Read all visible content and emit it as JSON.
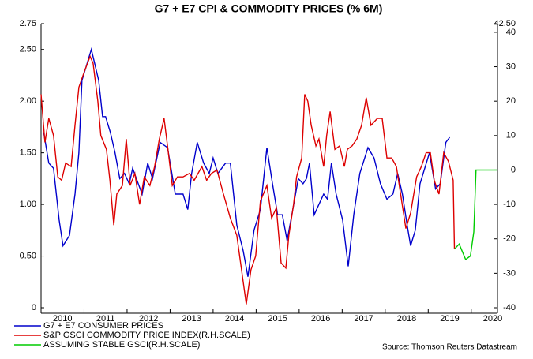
{
  "chart_data": {
    "type": "line",
    "title": "G7 + E7 CPI & COMMODITY PRICES (% 6M)",
    "source": "Source: Thomson Reuters Datastream",
    "xlim": [
      2010,
      2020.61
    ],
    "xticks": [
      2010,
      2011,
      2012,
      2013,
      2014,
      2015,
      2016,
      2017,
      2018,
      2019,
      2020
    ],
    "ylim": [
      0,
      2.75
    ],
    "yticks": [
      0,
      {
        "value": 0.5,
        "label": "0.50"
      },
      {
        "value": 1,
        "label": "1.00"
      },
      {
        "value": 1.5,
        "label": "1.50"
      },
      {
        "value": 2,
        "label": "2.00"
      },
      {
        "value": 2.5,
        "label": "2.50"
      },
      2.75
    ],
    "y2lim": [
      -40,
      42.5
    ],
    "y2ticks": [
      -40,
      -30,
      -20,
      -10,
      0,
      10,
      20,
      30,
      40,
      {
        "value": 42.5,
        "label": "42.50"
      }
    ],
    "grid": false,
    "series": [
      {
        "name": "G7 + E7 CONSUMER PRICES",
        "color": "#0000cc",
        "x": [
          2010.06,
          2010.18,
          2010.29,
          2010.42,
          2010.51,
          2010.66,
          2010.79,
          2010.88,
          2010.95,
          2011.06,
          2011.17,
          2011.34,
          2011.43,
          2011.5,
          2011.61,
          2011.72,
          2011.83,
          2011.94,
          2012.05,
          2012.13,
          2012.26,
          2012.35,
          2012.48,
          2012.59,
          2012.77,
          2012.94,
          2013.12,
          2013.3,
          2013.41,
          2013.5,
          2013.63,
          2013.78,
          2013.91,
          2014.0,
          2014.11,
          2014.29,
          2014.4,
          2014.55,
          2014.7,
          2014.81,
          2014.95,
          2015.1,
          2015.25,
          2015.38,
          2015.5,
          2015.61,
          2015.72,
          2015.83,
          2015.98,
          2016.09,
          2016.17,
          2016.24,
          2016.35,
          2016.46,
          2016.57,
          2016.66,
          2016.75,
          2016.86,
          2017.01,
          2017.14,
          2017.27,
          2017.41,
          2017.6,
          2017.74,
          2017.89,
          2018.04,
          2018.18,
          2018.29,
          2018.4,
          2018.51,
          2018.59,
          2018.7,
          2018.81,
          2019.03,
          2019.17,
          2019.28,
          2019.41,
          2019.5
        ],
        "values": [
          1.7,
          1.4,
          1.35,
          0.85,
          0.6,
          0.7,
          1.1,
          1.5,
          2.2,
          2.35,
          2.5,
          2.2,
          1.85,
          1.85,
          1.7,
          1.5,
          1.25,
          1.3,
          1.2,
          1.35,
          1.2,
          1.1,
          1.4,
          1.25,
          1.6,
          1.55,
          1.1,
          1.1,
          0.95,
          1.3,
          1.6,
          1.4,
          1.3,
          1.45,
          1.3,
          1.4,
          1.4,
          0.8,
          0.55,
          0.3,
          0.75,
          0.95,
          1.55,
          1.2,
          0.9,
          0.9,
          0.65,
          0.9,
          1.25,
          1.2,
          1.25,
          1.4,
          0.9,
          1.0,
          1.1,
          1.05,
          1.4,
          1.1,
          0.85,
          0.4,
          0.9,
          1.3,
          1.55,
          1.45,
          1.2,
          1.05,
          1.1,
          1.3,
          1.1,
          0.8,
          0.6,
          0.75,
          1.2,
          1.5,
          1.15,
          1.2,
          1.6,
          1.65
        ]
      },
      {
        "name": "S&P GSCI COMMODITY PRICE INDEX(R.H.SCALE)",
        "color": "#dd0000",
        "axis": "y2",
        "x": [
          2010.0,
          2010.09,
          2010.18,
          2010.29,
          2010.39,
          2010.48,
          2010.57,
          2010.7,
          2010.79,
          2010.88,
          2010.99,
          2011.14,
          2011.21,
          2011.32,
          2011.39,
          2011.52,
          2011.6,
          2011.69,
          2011.76,
          2011.89,
          2011.98,
          2012.07,
          2012.18,
          2012.29,
          2012.4,
          2012.53,
          2012.64,
          2012.75,
          2012.86,
          2012.95,
          2013.05,
          2013.17,
          2013.3,
          2013.45,
          2013.56,
          2013.74,
          2013.85,
          2013.96,
          2014.09,
          2014.24,
          2014.4,
          2014.55,
          2014.66,
          2014.77,
          2014.88,
          2014.99,
          2015.1,
          2015.25,
          2015.36,
          2015.47,
          2015.58,
          2015.69,
          2015.76,
          2015.87,
          2015.94,
          2016.06,
          2016.13,
          2016.2,
          2016.28,
          2016.39,
          2016.46,
          2016.57,
          2016.64,
          2016.72,
          2016.83,
          2016.94,
          2017.05,
          2017.12,
          2017.23,
          2017.34,
          2017.45,
          2017.56,
          2017.67,
          2017.82,
          2017.93,
          2018.04,
          2018.15,
          2018.26,
          2018.37,
          2018.48,
          2018.59,
          2018.73,
          2018.84,
          2018.95,
          2019.05,
          2019.14,
          2019.25,
          2019.36,
          2019.47,
          2019.58,
          2019.61
        ],
        "values": [
          22,
          8,
          15,
          10,
          -2,
          -3,
          2,
          1,
          13,
          24,
          28,
          33,
          31,
          20,
          10,
          6,
          -3,
          -16,
          -7,
          -4.5,
          9,
          -4.5,
          -1,
          -10,
          -2,
          -4.5,
          1,
          9,
          15,
          6,
          -4.5,
          -2,
          -2,
          -1,
          -3,
          1,
          -3,
          -1,
          0,
          -7,
          -14,
          -19,
          -29,
          -39,
          -29,
          -25,
          -9,
          -4.5,
          -14,
          -11,
          -27,
          -28.5,
          -19,
          -10,
          -2,
          3.5,
          22,
          20,
          13,
          7,
          9,
          1,
          10,
          17,
          6,
          7,
          1,
          6,
          7,
          9,
          13,
          21,
          13,
          15,
          15,
          3.5,
          3.5,
          1,
          -8,
          -17,
          -12.5,
          -2,
          1,
          5,
          5,
          -3,
          -7,
          5,
          2.5,
          -3,
          -23
        ]
      },
      {
        "name": "ASSUMING STABLE GSCI(R.H.SCALE)",
        "color": "#00cc00",
        "axis": "y2",
        "x": [
          2019.61,
          2019.72,
          2019.87,
          2019.98,
          2020.06,
          2020.11,
          2020.61
        ],
        "values": [
          -23,
          -21.5,
          -26,
          -25,
          -18,
          0,
          0
        ]
      }
    ]
  }
}
